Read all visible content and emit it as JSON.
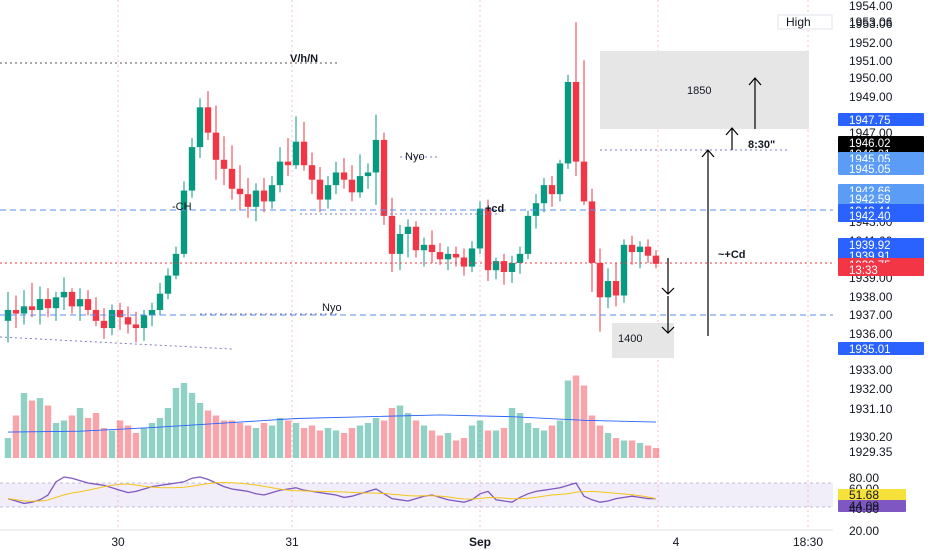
{
  "chart_data": {
    "type": "candlestick",
    "price_axis": {
      "ylim": [
        1928.6,
        1954.4
      ],
      "tick_labels": [
        "1954.00",
        "1953.06",
        "1952.00",
        "1951.00",
        "1950.00",
        "1949.00",
        "1947.00",
        "1944.00",
        "1943.00",
        "1941.00",
        "1939.00",
        "1938.00",
        "1937.00",
        "1936.00",
        "1933.00",
        "1932.00",
        "1931.10",
        "1930.20",
        "1929.35"
      ]
    },
    "price_badges": [
      {
        "label": "High",
        "value": "1953.06",
        "style": "outline"
      },
      {
        "value": "1947.75",
        "color": "#2962ff"
      },
      {
        "value": "1946.02",
        "color": "#000000"
      },
      {
        "value": "1946.01",
        "color": "#000000"
      },
      {
        "value": "1945.05",
        "color": "#5b9cf6"
      },
      {
        "value": "1945.05",
        "color": "#5b9cf6"
      },
      {
        "value": "1942.66",
        "color": "#5b9cf6"
      },
      {
        "value": "1942.59",
        "color": "#5b9cf6"
      },
      {
        "value": "1942.44",
        "color": "#2962ff"
      },
      {
        "value": "1942.40",
        "color": "#2962ff"
      },
      {
        "value": "1939.92",
        "color": "#2962ff"
      },
      {
        "value": "1939.91",
        "color": "#2962ff"
      },
      {
        "value": "1939.75",
        "color": "#f23645"
      },
      {
        "value": "13:33",
        "color": "#f23645"
      },
      {
        "value": "1935.01",
        "color": "#2962ff"
      }
    ],
    "time_axis": [
      "30",
      "31",
      "Sep",
      "4",
      "18:30"
    ],
    "candles": [
      [
        1936.6,
        1938.2,
        1935.4,
        1937.2
      ],
      [
        1937.2,
        1938.0,
        1936.2,
        1937.0
      ],
      [
        1937.0,
        1938.3,
        1936.4,
        1937.4
      ],
      [
        1937.4,
        1938.7,
        1936.8,
        1937.2
      ],
      [
        1937.2,
        1938.5,
        1936.4,
        1937.8
      ],
      [
        1937.8,
        1938.4,
        1936.8,
        1937.3
      ],
      [
        1937.3,
        1938.2,
        1936.6,
        1937.9
      ],
      [
        1937.9,
        1939.0,
        1937.2,
        1938.2
      ],
      [
        1938.2,
        1938.4,
        1937.0,
        1937.4
      ],
      [
        1937.4,
        1938.4,
        1936.6,
        1937.8
      ],
      [
        1937.8,
        1938.3,
        1936.9,
        1937.2
      ],
      [
        1937.2,
        1937.9,
        1936.3,
        1936.6
      ],
      [
        1936.6,
        1937.3,
        1935.6,
        1936.2
      ],
      [
        1936.2,
        1937.5,
        1935.8,
        1937.2
      ],
      [
        1937.2,
        1937.6,
        1936.1,
        1936.8
      ],
      [
        1936.8,
        1937.4,
        1935.9,
        1936.4
      ],
      [
        1936.4,
        1937.1,
        1935.4,
        1936.2
      ],
      [
        1936.2,
        1937.2,
        1935.5,
        1936.9
      ],
      [
        1936.9,
        1937.6,
        1936.3,
        1937.2
      ],
      [
        1937.2,
        1938.7,
        1936.9,
        1938.1
      ],
      [
        1938.1,
        1939.5,
        1937.8,
        1939.1
      ],
      [
        1939.1,
        1940.7,
        1938.9,
        1940.3
      ],
      [
        1940.3,
        1944.3,
        1940.1,
        1943.8
      ],
      [
        1943.8,
        1946.7,
        1943.4,
        1946.2
      ],
      [
        1946.2,
        1948.9,
        1945.6,
        1948.4
      ],
      [
        1948.4,
        1949.3,
        1946.6,
        1947.0
      ],
      [
        1947.0,
        1948.5,
        1944.4,
        1945.5
      ],
      [
        1945.5,
        1946.8,
        1944.1,
        1945.0
      ],
      [
        1945.0,
        1946.3,
        1943.3,
        1943.9
      ],
      [
        1943.9,
        1945.2,
        1942.7,
        1943.6
      ],
      [
        1943.6,
        1944.5,
        1942.3,
        1942.9
      ],
      [
        1942.9,
        1944.2,
        1942.1,
        1943.8
      ],
      [
        1943.8,
        1944.5,
        1942.6,
        1943.2
      ],
      [
        1943.2,
        1944.6,
        1942.8,
        1944.1
      ],
      [
        1944.1,
        1946.2,
        1943.7,
        1945.4
      ],
      [
        1945.4,
        1946.7,
        1944.6,
        1945.2
      ],
      [
        1945.2,
        1947.9,
        1945.0,
        1946.5
      ],
      [
        1946.5,
        1947.6,
        1944.9,
        1945.2
      ],
      [
        1945.2,
        1945.9,
        1943.6,
        1944.4
      ],
      [
        1944.4,
        1945.1,
        1942.6,
        1943.3
      ],
      [
        1943.3,
        1944.6,
        1942.8,
        1944.1
      ],
      [
        1944.1,
        1945.4,
        1943.6,
        1944.8
      ],
      [
        1944.8,
        1945.6,
        1943.9,
        1944.4
      ],
      [
        1944.4,
        1945.2,
        1943.2,
        1943.7
      ],
      [
        1943.7,
        1945.8,
        1943.4,
        1944.6
      ],
      [
        1944.6,
        1945.3,
        1943.9,
        1944.8
      ],
      [
        1944.8,
        1948.0,
        1943.0,
        1946.6
      ],
      [
        1946.6,
        1947.0,
        1941.9,
        1942.4
      ],
      [
        1942.4,
        1943.4,
        1939.3,
        1940.3
      ],
      [
        1940.3,
        1941.9,
        1939.4,
        1941.4
      ],
      [
        1941.4,
        1942.2,
        1940.1,
        1941.8
      ],
      [
        1941.8,
        1942.1,
        1940.1,
        1940.5
      ],
      [
        1940.5,
        1941.2,
        1939.6,
        1940.8
      ],
      [
        1940.8,
        1941.6,
        1939.8,
        1940.4
      ],
      [
        1940.4,
        1940.9,
        1939.7,
        1940.0
      ],
      [
        1940.0,
        1940.7,
        1939.4,
        1940.3
      ],
      [
        1940.3,
        1940.7,
        1939.6,
        1940.1
      ],
      [
        1940.1,
        1940.6,
        1939.1,
        1939.6
      ],
      [
        1939.6,
        1941.0,
        1939.3,
        1940.6
      ],
      [
        1940.6,
        1943.2,
        1940.3,
        1942.8
      ],
      [
        1942.8,
        1943.3,
        1938.8,
        1939.4
      ],
      [
        1939.4,
        1940.1,
        1938.9,
        1939.9
      ],
      [
        1939.9,
        1940.3,
        1938.6,
        1939.3
      ],
      [
        1939.3,
        1940.2,
        1938.7,
        1939.8
      ],
      [
        1939.8,
        1940.7,
        1939.2,
        1940.3
      ],
      [
        1940.3,
        1942.7,
        1940.0,
        1942.4
      ],
      [
        1942.4,
        1943.6,
        1941.7,
        1943.1
      ],
      [
        1943.1,
        1944.5,
        1942.6,
        1944.1
      ],
      [
        1944.1,
        1944.6,
        1942.9,
        1943.6
      ],
      [
        1943.6,
        1945.5,
        1943.2,
        1945.3
      ],
      [
        1945.3,
        1950.2,
        1945.0,
        1949.8
      ],
      [
        1949.8,
        1953.1,
        1944.6,
        1945.4
      ],
      [
        1945.4,
        1951.0,
        1943.0,
        1943.2
      ],
      [
        1943.2,
        1943.9,
        1938.2,
        1939.8
      ],
      [
        1939.8,
        1940.6,
        1936.0,
        1937.9
      ],
      [
        1937.9,
        1939.5,
        1937.3,
        1938.8
      ],
      [
        1938.8,
        1939.8,
        1937.4,
        1938.0
      ],
      [
        1938.0,
        1941.1,
        1937.6,
        1940.8
      ],
      [
        1940.8,
        1941.3,
        1939.7,
        1940.4
      ],
      [
        1940.4,
        1941.0,
        1939.5,
        1940.7
      ],
      [
        1940.7,
        1941.1,
        1939.8,
        1940.2
      ],
      [
        1940.2,
        1940.5,
        1939.5,
        1939.75
      ]
    ],
    "volume": [
      16,
      34,
      52,
      46,
      48,
      42,
      28,
      30,
      34,
      40,
      32,
      36,
      24,
      22,
      30,
      26,
      20,
      24,
      28,
      32,
      40,
      56,
      60,
      52,
      44,
      38,
      34,
      30,
      30,
      28,
      26,
      24,
      28,
      26,
      32,
      30,
      28,
      24,
      26,
      22,
      24,
      22,
      20,
      24,
      26,
      28,
      32,
      30,
      40,
      42,
      36,
      30,
      26,
      22,
      18,
      20,
      14,
      16,
      26,
      30,
      22,
      22,
      24,
      40,
      36,
      28,
      24,
      22,
      26,
      30,
      62,
      66,
      58,
      34,
      26,
      20,
      16,
      14,
      14,
      12,
      10,
      8
    ],
    "volume_ma": [
      1930.45,
      1930.5,
      1930.7,
      1930.95,
      1931.2,
      1931.3,
      1931.4,
      1931.3,
      1931.1,
      1931.0
    ],
    "rsi": [
      44,
      40,
      36,
      38,
      42,
      50,
      72,
      80,
      78,
      74,
      70,
      68,
      66,
      62,
      58,
      54,
      56,
      60,
      64,
      66,
      68,
      70,
      72,
      78,
      80,
      76,
      70,
      64,
      60,
      58,
      56,
      52,
      50,
      54,
      58,
      60,
      62,
      58,
      56,
      54,
      52,
      50,
      46,
      48,
      52,
      56,
      60,
      52,
      44,
      42,
      40,
      44,
      48,
      50,
      46,
      42,
      40,
      38,
      42,
      52,
      56,
      42,
      40,
      38,
      46,
      52,
      56,
      58,
      60,
      62,
      66,
      70,
      48,
      42,
      38,
      40,
      44,
      46,
      48,
      46,
      44,
      44
    ],
    "rsi_axis": [
      "80.00",
      "60.00",
      "51.68",
      "44.09",
      "40.00",
      "20.00"
    ],
    "annotations": [
      {
        "text": "V/h/N"
      },
      {
        "text": "Nyo"
      },
      {
        "text": "-CH"
      },
      {
        "text": "+cd"
      },
      {
        "text": "Nyo"
      },
      {
        "text": "1850"
      },
      {
        "text": "8:30\""
      },
      {
        "text": "~+Cd"
      },
      {
        "text": "1400"
      }
    ]
  }
}
